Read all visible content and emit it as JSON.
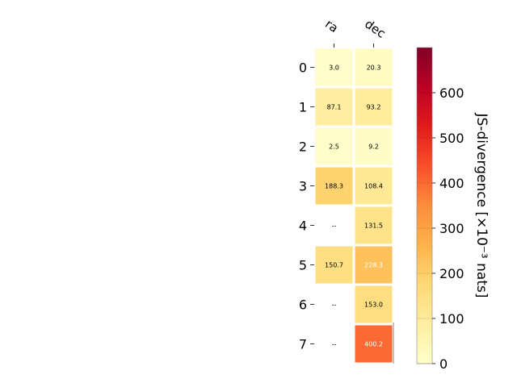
{
  "chart_data": {
    "type": "heatmap",
    "columns": [
      "ra",
      "dec"
    ],
    "rows": [
      "0",
      "1",
      "2",
      "3",
      "4",
      "5",
      "6",
      "7"
    ],
    "values": [
      [
        3.0,
        20.3
      ],
      [
        87.1,
        93.2
      ],
      [
        2.5,
        9.2
      ],
      [
        188.3,
        108.4
      ],
      [
        null,
        131.5
      ],
      [
        150.7,
        228.3
      ],
      [
        null,
        153.0
      ],
      [
        null,
        400.2
      ]
    ],
    "cell_labels": [
      [
        "3.0",
        "20.3"
      ],
      [
        "87.1",
        "93.2"
      ],
      [
        "2.5",
        "9.2"
      ],
      [
        "188.3",
        "108.4"
      ],
      [
        "--",
        "131.5"
      ],
      [
        "150.7",
        "228.3"
      ],
      [
        "--",
        "153.0"
      ],
      [
        "--",
        "400.2"
      ]
    ],
    "colorbar": {
      "label": "JS-divergence [×10⁻³ nats]",
      "range": [
        0,
        700
      ],
      "ticks": [
        "0",
        "100",
        "200",
        "300",
        "400",
        "500",
        "600"
      ],
      "colormap": "YlOrRd"
    }
  }
}
